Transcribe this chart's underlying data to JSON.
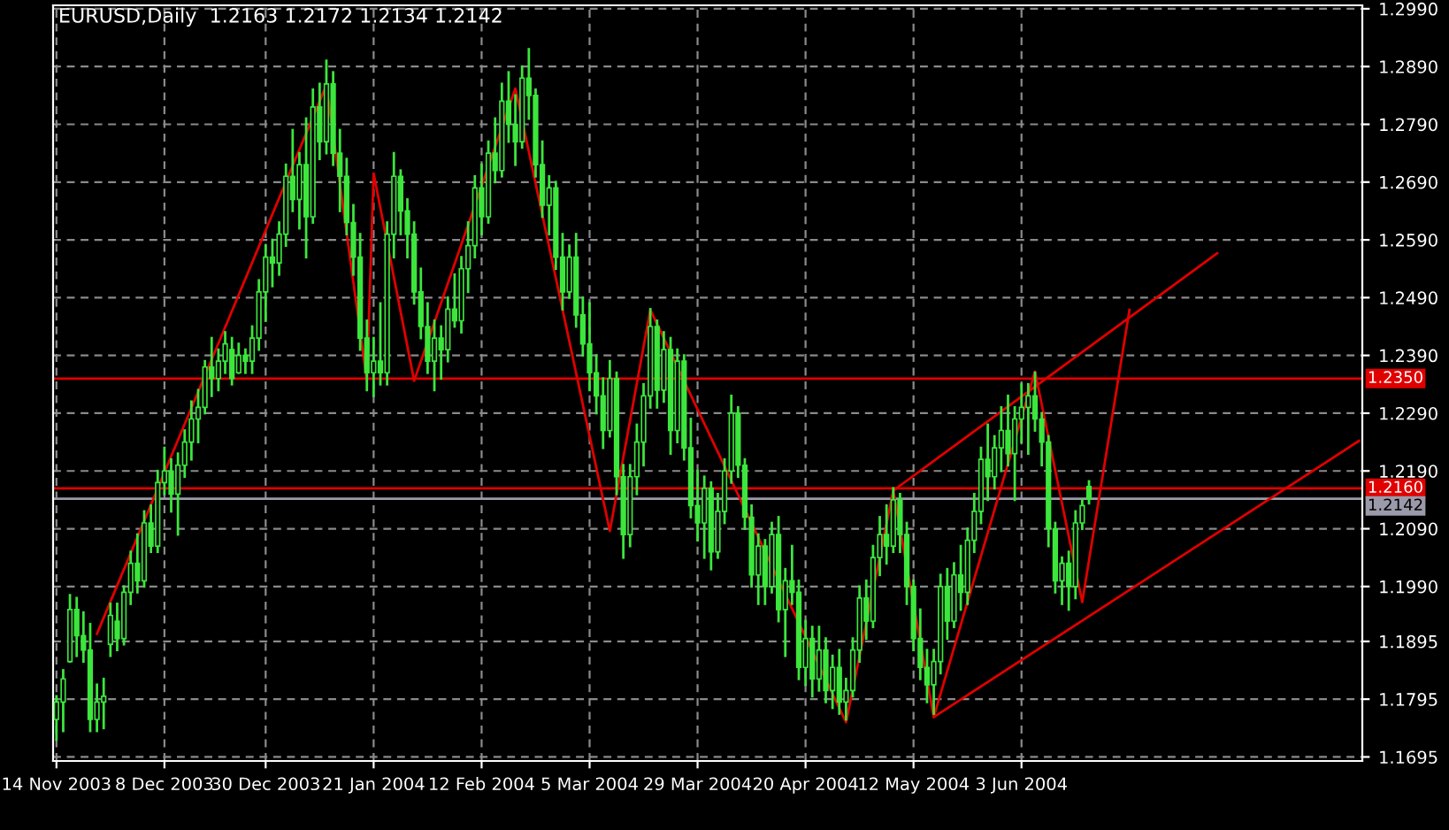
{
  "chart_data": {
    "type": "candlestick",
    "title": "EURUSD,Daily  1.2163 1.2172 1.2134 1.2142",
    "categories": [
      "14 Nov 2003",
      null,
      null,
      null,
      null,
      null,
      null,
      null,
      null,
      null,
      null,
      null,
      null,
      null,
      null,
      null,
      "8 Dec 2003",
      null,
      null,
      null,
      null,
      null,
      null,
      null,
      null,
      null,
      null,
      null,
      null,
      null,
      null,
      "30 Dec 2003",
      null,
      null,
      null,
      null,
      null,
      null,
      null,
      null,
      null,
      null,
      null,
      null,
      null,
      null,
      null,
      "21 Jan 2004",
      null,
      null,
      null,
      null,
      null,
      null,
      null,
      null,
      null,
      null,
      null,
      null,
      null,
      null,
      null,
      "12 Feb 2004",
      null,
      null,
      null,
      null,
      null,
      null,
      null,
      null,
      null,
      null,
      null,
      null,
      null,
      null,
      null,
      "5 Mar 2004",
      null,
      null,
      null,
      null,
      null,
      null,
      null,
      null,
      null,
      null,
      null,
      null,
      null,
      null,
      null,
      "29 Mar 2004",
      null,
      null,
      null,
      null,
      null,
      null,
      null,
      null,
      null,
      null,
      null,
      null,
      null,
      null,
      null,
      "20 Apr 2004",
      null,
      null,
      null,
      null,
      null,
      null,
      null,
      null,
      null,
      null,
      null,
      null,
      null,
      null,
      null,
      "12 May 2004",
      null,
      null,
      null,
      null,
      null,
      null,
      null,
      null,
      null,
      null,
      null,
      null,
      null,
      null,
      null,
      "3 Jun 2004",
      null,
      null,
      null,
      null,
      null,
      null,
      null,
      null,
      null,
      null,
      null,
      null,
      null,
      null,
      null,
      null,
      null,
      null,
      null,
      null,
      null,
      null,
      null,
      null,
      null,
      null,
      null,
      null,
      null,
      null,
      null,
      null,
      null,
      null,
      null,
      null,
      null,
      null,
      null,
      null,
      null,
      null,
      null,
      null,
      null,
      null,
      null,
      null,
      null,
      null
    ],
    "series": [
      {
        "color": "#3ce63c",
        "ohlc": [
          [
            1.176,
            1.18,
            1.1725,
            1.179
          ],
          [
            1.179,
            1.1845,
            1.174,
            1.183
          ],
          [
            1.186,
            1.1975,
            1.186,
            1.195
          ],
          [
            1.195,
            1.197,
            1.187,
            1.1905
          ],
          [
            1.1905,
            1.1945,
            1.186,
            1.188
          ],
          [
            1.188,
            1.1925,
            1.174,
            1.176
          ],
          [
            1.176,
            1.182,
            1.174,
            1.179
          ],
          [
            1.179,
            1.183,
            1.1745,
            1.18
          ],
          [
            1.189,
            1.196,
            1.187,
            1.194
          ],
          [
            1.193,
            1.196,
            1.188,
            1.19
          ],
          [
            1.19,
            1.199,
            1.189,
            1.198
          ],
          [
            1.198,
            1.205,
            1.196,
            1.203
          ],
          [
            1.203,
            1.208,
            1.198,
            1.2
          ],
          [
            1.2,
            1.212,
            1.199,
            1.21
          ],
          [
            1.21,
            1.213,
            1.205,
            1.206
          ],
          [
            1.206,
            1.219,
            1.205,
            1.217
          ],
          [
            1.217,
            1.223,
            1.215,
            1.219
          ],
          [
            1.219,
            1.221,
            1.212,
            1.215
          ],
          [
            1.215,
            1.222,
            1.208,
            1.22
          ],
          [
            1.22,
            1.226,
            1.218,
            1.224
          ],
          [
            1.224,
            1.231,
            1.221,
            1.228
          ],
          [
            1.228,
            1.233,
            1.224,
            1.23
          ],
          [
            1.23,
            1.238,
            1.229,
            1.237
          ],
          [
            1.237,
            1.242,
            1.232,
            1.235
          ],
          [
            1.235,
            1.24,
            1.233,
            1.238
          ],
          [
            1.238,
            1.243,
            1.236,
            1.241
          ],
          [
            1.24,
            1.242,
            1.234,
            1.235
          ],
          [
            1.236,
            1.241,
            1.236,
            1.239
          ],
          [
            1.239,
            1.24,
            1.236,
            1.238
          ],
          [
            1.238,
            1.244,
            1.236,
            1.242
          ],
          [
            1.242,
            1.252,
            1.24,
            1.25
          ],
          [
            1.25,
            1.258,
            1.245,
            1.256
          ],
          [
            1.256,
            1.259,
            1.251,
            1.255
          ],
          [
            1.255,
            1.262,
            1.253,
            1.26
          ],
          [
            1.26,
            1.272,
            1.258,
            1.27
          ],
          [
            1.27,
            1.278,
            1.264,
            1.266
          ],
          [
            1.266,
            1.274,
            1.261,
            1.272
          ],
          [
            1.272,
            1.28,
            1.256,
            1.263
          ],
          [
            1.263,
            1.285,
            1.262,
            1.282
          ],
          [
            1.282,
            1.286,
            1.273,
            1.276
          ],
          [
            1.276,
            1.29,
            1.274,
            1.286
          ],
          [
            1.286,
            1.288,
            1.272,
            1.274
          ],
          [
            1.274,
            1.278,
            1.264,
            1.27
          ],
          [
            1.27,
            1.273,
            1.26,
            1.262
          ],
          [
            1.262,
            1.265,
            1.253,
            1.256
          ],
          [
            1.256,
            1.26,
            1.24,
            1.242
          ],
          [
            1.242,
            1.245,
            1.233,
            1.236
          ],
          [
            1.236,
            1.242,
            1.232,
            1.238
          ],
          [
            1.238,
            1.248,
            1.234,
            1.236
          ],
          [
            1.236,
            1.262,
            1.234,
            1.26
          ],
          [
            1.26,
            1.274,
            1.256,
            1.27
          ],
          [
            1.27,
            1.271,
            1.26,
            1.264
          ],
          [
            1.264,
            1.266,
            1.256,
            1.26
          ],
          [
            1.26,
            1.262,
            1.248,
            1.25
          ],
          [
            1.25,
            1.254,
            1.242,
            1.244
          ],
          [
            1.244,
            1.248,
            1.236,
            1.238
          ],
          [
            1.238,
            1.245,
            1.233,
            1.242
          ],
          [
            1.242,
            1.244,
            1.235,
            1.24
          ],
          [
            1.24,
            1.249,
            1.238,
            1.247
          ],
          [
            1.247,
            1.253,
            1.244,
            1.245
          ],
          [
            1.245,
            1.256,
            1.243,
            1.254
          ],
          [
            1.254,
            1.262,
            1.25,
            1.258
          ],
          [
            1.258,
            1.27,
            1.256,
            1.268
          ],
          [
            1.268,
            1.272,
            1.26,
            1.263
          ],
          [
            1.263,
            1.276,
            1.262,
            1.274
          ],
          [
            1.274,
            1.28,
            1.269,
            1.271
          ],
          [
            1.271,
            1.286,
            1.27,
            1.283
          ],
          [
            1.283,
            1.288,
            1.276,
            1.279
          ],
          [
            1.279,
            1.284,
            1.272,
            1.276
          ],
          [
            1.276,
            1.289,
            1.275,
            1.287
          ],
          [
            1.287,
            1.292,
            1.28,
            1.284
          ],
          [
            1.284,
            1.285,
            1.27,
            1.272
          ],
          [
            1.272,
            1.276,
            1.263,
            1.265
          ],
          [
            1.265,
            1.27,
            1.26,
            1.268
          ],
          [
            1.268,
            1.269,
            1.254,
            1.256
          ],
          [
            1.256,
            1.26,
            1.247,
            1.25
          ],
          [
            1.25,
            1.258,
            1.249,
            1.256
          ],
          [
            1.256,
            1.26,
            1.244,
            1.246
          ],
          [
            1.246,
            1.249,
            1.239,
            1.241
          ],
          [
            1.241,
            1.248,
            1.233,
            1.236
          ],
          [
            1.236,
            1.239,
            1.229,
            1.232
          ],
          [
            1.232,
            1.235,
            1.223,
            1.226
          ],
          [
            1.226,
            1.238,
            1.225,
            1.235
          ],
          [
            1.235,
            1.236,
            1.215,
            1.218
          ],
          [
            1.218,
            1.22,
            1.204,
            1.208
          ],
          [
            1.208,
            1.22,
            1.206,
            1.218
          ],
          [
            1.218,
            1.227,
            1.215,
            1.224
          ],
          [
            1.224,
            1.234,
            1.22,
            1.232
          ],
          [
            1.232,
            1.247,
            1.23,
            1.244
          ],
          [
            1.244,
            1.245,
            1.23,
            1.233
          ],
          [
            1.233,
            1.243,
            1.231,
            1.24
          ],
          [
            1.24,
            1.242,
            1.222,
            1.226
          ],
          [
            1.226,
            1.24,
            1.224,
            1.238
          ],
          [
            1.238,
            1.239,
            1.221,
            1.223
          ],
          [
            1.223,
            1.228,
            1.211,
            1.213
          ],
          [
            1.213,
            1.219,
            1.207,
            1.21
          ],
          [
            1.21,
            1.218,
            1.204,
            1.216
          ],
          [
            1.216,
            1.217,
            1.202,
            1.205
          ],
          [
            1.205,
            1.215,
            1.204,
            1.212
          ],
          [
            1.212,
            1.221,
            1.21,
            1.219
          ],
          [
            1.219,
            1.232,
            1.217,
            1.229
          ],
          [
            1.229,
            1.23,
            1.218,
            1.22
          ],
          [
            1.22,
            1.221,
            1.209,
            1.211
          ],
          [
            1.211,
            1.213,
            1.199,
            1.201
          ],
          [
            1.201,
            1.208,
            1.196,
            1.206
          ],
          [
            1.206,
            1.207,
            1.196,
            1.199
          ],
          [
            1.199,
            1.21,
            1.198,
            1.208
          ],
          [
            1.208,
            1.211,
            1.193,
            1.195
          ],
          [
            1.195,
            1.202,
            1.187,
            1.2
          ],
          [
            1.2,
            1.206,
            1.196,
            1.198
          ],
          [
            1.198,
            1.2,
            1.183,
            1.185
          ],
          [
            1.185,
            1.193,
            1.182,
            1.19
          ],
          [
            1.19,
            1.192,
            1.18,
            1.183
          ],
          [
            1.183,
            1.192,
            1.181,
            1.188
          ],
          [
            1.188,
            1.19,
            1.179,
            1.181
          ],
          [
            1.181,
            1.187,
            1.178,
            1.185
          ],
          [
            1.185,
            1.188,
            1.177,
            1.179
          ],
          [
            1.179,
            1.183,
            1.176,
            1.181
          ],
          [
            1.181,
            1.19,
            1.18,
            1.188
          ],
          [
            1.188,
            1.199,
            1.186,
            1.197
          ],
          [
            1.197,
            1.2,
            1.19,
            1.193
          ],
          [
            1.193,
            1.206,
            1.192,
            1.204
          ],
          [
            1.204,
            1.211,
            1.201,
            1.208
          ],
          [
            1.208,
            1.213,
            1.203,
            1.206
          ],
          [
            1.206,
            1.216,
            1.205,
            1.214
          ],
          [
            1.214,
            1.215,
            1.205,
            1.208
          ],
          [
            1.208,
            1.21,
            1.196,
            1.199
          ],
          [
            1.199,
            1.2,
            1.188,
            1.19
          ],
          [
            1.19,
            1.195,
            1.183,
            1.185
          ],
          [
            1.185,
            1.188,
            1.179,
            1.182
          ],
          [
            1.182,
            1.188,
            1.177,
            1.186
          ],
          [
            1.186,
            1.201,
            1.184,
            1.199
          ],
          [
            1.199,
            1.202,
            1.19,
            1.193
          ],
          [
            1.193,
            1.203,
            1.192,
            1.201
          ],
          [
            1.201,
            1.206,
            1.195,
            1.198
          ],
          [
            1.198,
            1.209,
            1.196,
            1.207
          ],
          [
            1.207,
            1.215,
            1.205,
            1.212
          ],
          [
            1.212,
            1.223,
            1.21,
            1.221
          ],
          [
            1.221,
            1.227,
            1.214,
            1.218
          ],
          [
            1.218,
            1.225,
            1.216,
            1.223
          ],
          [
            1.223,
            1.23,
            1.219,
            1.226
          ],
          [
            1.226,
            1.232,
            1.22,
            1.222
          ],
          [
            1.222,
            1.23,
            1.214,
            1.228
          ],
          [
            1.228,
            1.234,
            1.224,
            1.23
          ],
          [
            1.23,
            1.234,
            1.222,
            1.232
          ],
          [
            1.232,
            1.236,
            1.226,
            1.228
          ],
          [
            1.228,
            1.229,
            1.22,
            1.224
          ],
          [
            1.224,
            1.225,
            1.206,
            1.209
          ],
          [
            1.209,
            1.21,
            1.198,
            1.2
          ],
          [
            1.2,
            1.204,
            1.196,
            1.203
          ],
          [
            1.203,
            1.205,
            1.195,
            1.199
          ],
          [
            1.199,
            1.212,
            1.197,
            1.21
          ],
          [
            1.21,
            1.214,
            1.209,
            1.213
          ],
          [
            1.2163,
            1.2172,
            1.2134,
            1.2142
          ],
          null,
          null,
          null,
          null,
          null,
          null,
          null,
          null,
          null,
          null,
          null,
          null,
          null,
          null,
          null,
          null,
          null,
          null,
          null,
          null,
          null,
          null,
          null,
          null,
          null,
          null,
          null,
          null,
          null,
          null,
          null,
          null,
          null,
          null,
          null,
          null,
          null,
          null,
          null,
          null
        ]
      },
      {
        "type": "line",
        "color": "#e00000",
        "values": [
          null,
          null,
          null,
          null,
          null,
          null,
          1.1908,
          null,
          null,
          null,
          null,
          null,
          null,
          null,
          null,
          null,
          null,
          null,
          null,
          null,
          null,
          null,
          null,
          null,
          null,
          null,
          null,
          null,
          null,
          null,
          null,
          null,
          null,
          null,
          null,
          null,
          null,
          null,
          null,
          null,
          1.2858,
          null,
          null,
          null,
          null,
          null,
          1.2346,
          1.2705,
          null,
          null,
          null,
          null,
          null,
          1.2346,
          null,
          null,
          null,
          null,
          null,
          null,
          null,
          null,
          null,
          null,
          null,
          null,
          null,
          null,
          1.2852,
          null,
          null,
          null,
          null,
          null,
          null,
          null,
          null,
          null,
          null,
          null,
          null,
          null,
          1.2086,
          null,
          null,
          null,
          null,
          null,
          1.2469,
          null,
          null,
          null,
          null,
          null,
          null,
          null,
          null,
          null,
          null,
          null,
          null,
          null,
          null,
          null,
          null,
          null,
          null,
          null,
          null,
          null,
          null,
          null,
          null,
          null,
          null,
          null,
          null,
          1.1755,
          null,
          null,
          null,
          null,
          null,
          null,
          1.2156,
          null,
          null,
          null,
          null,
          null,
          1.1764,
          null,
          null,
          null,
          null,
          null,
          null,
          null,
          null,
          null,
          null,
          null,
          null,
          null,
          null,
          1.2362,
          null,
          null,
          null,
          null,
          null,
          null,
          1.1963,
          null,
          null,
          null,
          null,
          null,
          null,
          1.2469,
          null,
          null,
          null,
          null,
          null,
          null,
          null,
          null,
          null,
          null,
          null,
          null,
          null,
          null,
          null,
          null,
          null,
          null,
          null,
          null,
          null,
          null,
          null,
          null,
          null,
          null,
          null,
          null,
          null,
          null,
          null,
          null,
          null,
          null
        ]
      },
      {
        "type": "line",
        "color": "#e00000",
        "values": [
          null,
          null,
          null,
          null,
          null,
          null,
          null,
          null,
          null,
          null,
          null,
          null,
          null,
          null,
          null,
          null,
          null,
          null,
          null,
          null,
          null,
          null,
          null,
          null,
          null,
          null,
          null,
          null,
          null,
          null,
          null,
          null,
          null,
          null,
          null,
          null,
          null,
          null,
          null,
          null,
          null,
          null,
          null,
          null,
          null,
          null,
          null,
          null,
          null,
          null,
          null,
          null,
          null,
          null,
          null,
          null,
          null,
          null,
          null,
          null,
          null,
          null,
          null,
          null,
          null,
          null,
          null,
          null,
          null,
          null,
          null,
          null,
          null,
          null,
          null,
          null,
          null,
          null,
          null,
          null,
          null,
          null,
          null,
          null,
          null,
          null,
          null,
          null,
          null,
          null,
          null,
          null,
          null,
          null,
          null,
          null,
          null,
          null,
          null,
          null,
          null,
          null,
          null,
          null,
          null,
          null,
          null,
          null,
          null,
          null,
          null,
          null,
          null,
          null,
          null,
          null,
          null,
          null,
          null,
          null,
          null,
          null,
          null,
          null,
          1.2156,
          null,
          null,
          null,
          null,
          null,
          null,
          null,
          null,
          null,
          null,
          null,
          null,
          null,
          null,
          null,
          null,
          null,
          null,
          null,
          null,
          null,
          null,
          null,
          null,
          null,
          null,
          null,
          null,
          null,
          null,
          null,
          null,
          null,
          null,
          null,
          null,
          null,
          null,
          null,
          null,
          null,
          null,
          null,
          null,
          null,
          null,
          null,
          1.2567,
          null,
          null,
          null,
          null,
          null,
          null,
          null,
          null,
          null,
          null,
          null,
          null,
          null,
          null,
          null,
          null,
          null,
          null,
          null,
          null,
          null
        ]
      },
      {
        "type": "line",
        "color": "#e00000",
        "values": [
          null,
          null,
          null,
          null,
          null,
          null,
          null,
          null,
          null,
          null,
          null,
          null,
          null,
          null,
          null,
          null,
          null,
          null,
          null,
          null,
          null,
          null,
          null,
          null,
          null,
          null,
          null,
          null,
          null,
          null,
          null,
          null,
          null,
          null,
          null,
          null,
          null,
          null,
          null,
          null,
          null,
          null,
          null,
          null,
          null,
          null,
          null,
          null,
          null,
          null,
          null,
          null,
          null,
          null,
          null,
          null,
          null,
          null,
          null,
          null,
          null,
          null,
          null,
          null,
          null,
          null,
          null,
          null,
          null,
          null,
          null,
          null,
          null,
          null,
          null,
          null,
          null,
          null,
          null,
          null,
          null,
          null,
          null,
          null,
          null,
          null,
          null,
          null,
          null,
          null,
          null,
          null,
          null,
          null,
          null,
          null,
          null,
          null,
          null,
          null,
          null,
          null,
          null,
          null,
          null,
          null,
          null,
          null,
          null,
          null,
          null,
          null,
          null,
          null,
          null,
          null,
          null,
          null,
          null,
          null,
          null,
          null,
          null,
          null,
          null,
          null,
          null,
          null,
          null,
          null,
          1.1764,
          null,
          null,
          null,
          null,
          null,
          null,
          null,
          null,
          null,
          null,
          null,
          null,
          null,
          null,
          null,
          null,
          null,
          null,
          null,
          null,
          null,
          null,
          null,
          null,
          null,
          null,
          null,
          null,
          null,
          null,
          null,
          null,
          null,
          null,
          null,
          null,
          null,
          null,
          null,
          null,
          null,
          null,
          null,
          null,
          null,
          null,
          null,
          null,
          null,
          null,
          null,
          null,
          null,
          null,
          null,
          null,
          null,
          null,
          null,
          null,
          null,
          null,
          1.2242
        ]
      }
    ],
    "ylim": [
      1.1688,
      1.2996
    ],
    "yticks": [
      {
        "value": 1.299,
        "label": "1.2990"
      },
      {
        "value": 1.289,
        "label": "1.2890"
      },
      {
        "value": 1.279,
        "label": "1.2790"
      },
      {
        "value": 1.269,
        "label": "1.2690"
      },
      {
        "value": 1.259,
        "label": "1.2590"
      },
      {
        "value": 1.249,
        "label": "1.2490"
      },
      {
        "value": 1.239,
        "label": "1.2390"
      },
      {
        "value": 1.229,
        "label": "1.2290"
      },
      {
        "value": 1.219,
        "label": "1.2190"
      },
      {
        "value": 1.209,
        "label": "1.2090"
      },
      {
        "value": 1.199,
        "label": "1.1990"
      },
      {
        "value": 1.1895,
        "label": "1.1895"
      },
      {
        "value": 1.1795,
        "label": "1.1795"
      },
      {
        "value": 1.1695,
        "label": "1.1695"
      }
    ],
    "ref_lines": [
      {
        "axis": "y",
        "value": 1.235,
        "label": "1.2350",
        "color": "#e00000"
      },
      {
        "axis": "y",
        "value": 1.216,
        "label": "1.2160",
        "color": "#e00000"
      },
      {
        "axis": "y",
        "value": 1.2142,
        "label": "1.2142",
        "color": "#9a9aaa"
      }
    ],
    "grid": true
  }
}
